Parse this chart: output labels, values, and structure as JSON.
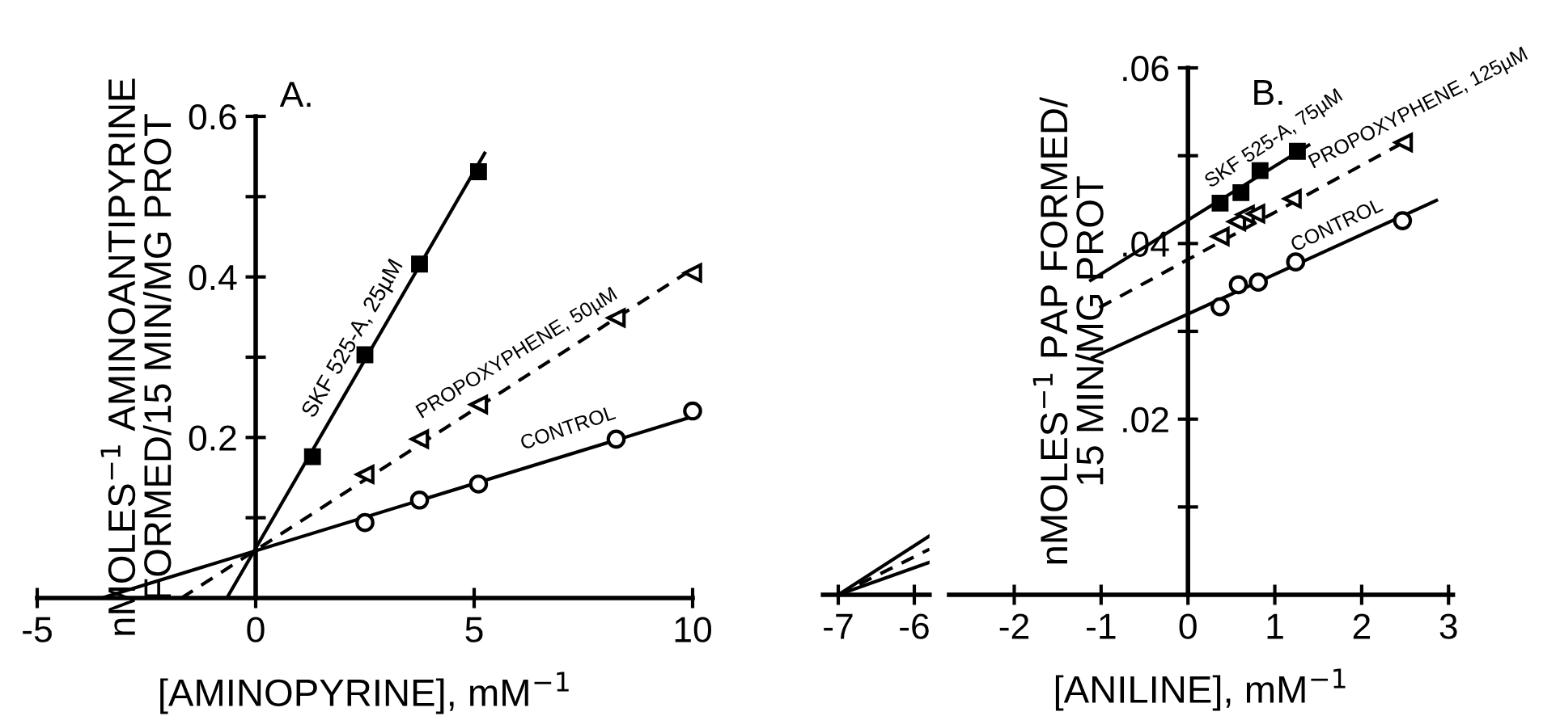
{
  "chart_data": [
    {
      "type": "scatter",
      "title": "A.",
      "xlabel": "[AMINOPYRINE], mM$^{−1}$",
      "ylabel": "nMOLES$^{−1}$ AMINOANTIPYRINE\nFORMED/15 MIN/MG PROT",
      "xlim": [
        -5,
        10
      ],
      "ylim": [
        0,
        0.6
      ],
      "xticks": [
        -5,
        0,
        5,
        10
      ],
      "yticks": [
        {
          "value": 0.1,
          "label": null
        },
        0.2,
        {
          "value": 0.3,
          "label": null
        },
        0.4,
        {
          "value": 0.5,
          "label": null
        },
        0.6
      ],
      "grid": false,
      "legend": false,
      "series": [
        {
          "name": "SKF 525-A, 25µM",
          "color": "#000000",
          "marker": "square",
          "x": [
            1.3,
            2.5,
            3.75,
            5.1
          ],
          "values": [
            0.176,
            0.303,
            0.416,
            0.531
          ]
        },
        {
          "name": "PROPOXYPHENE, 50µM",
          "color": "#000000",
          "marker": "triangle",
          "x": [
            2.5,
            3.75,
            5.1,
            8.25,
            10
          ],
          "values": [
            0.154,
            0.198,
            0.241,
            0.349,
            0.405
          ]
        },
        {
          "name": "CONTROL",
          "color": "#000000",
          "marker": "circle",
          "x": [
            2.5,
            3.75,
            5.1,
            8.25,
            10
          ],
          "values": [
            0.094,
            0.122,
            0.142,
            0.198,
            0.233
          ]
        },
        {
          "type": "line",
          "color": "#000000",
          "line_style": "solid",
          "x": [
            -0.66,
            5.24
          ],
          "values": [
            0,
            0.554
          ]
        },
        {
          "type": "line",
          "color": "#000000",
          "line_style": "dashed",
          "x": [
            -1.7,
            10
          ],
          "values": [
            0,
            0.41
          ]
        },
        {
          "type": "line",
          "color": "#000000",
          "line_style": "solid",
          "x": [
            -3.52,
            10
          ],
          "values": [
            0,
            0.226
          ]
        }
      ]
    },
    {
      "type": "scatter",
      "title": "B.",
      "xlabel": "[ANILINE], mM$^{−1}$",
      "ylabel": "nMOLES$^{−1}$ PAP FORMED/\n15 MIN/MG PROT",
      "xlim": [
        -2.75,
        3.05
      ],
      "ylim": [
        0,
        0.06
      ],
      "xticks": [
        -2,
        -1,
        0,
        1,
        2,
        3
      ],
      "yticks": [
        {
          "value": 0.01,
          "label": null
        },
        {
          "value": 0.02,
          "label": ".02"
        },
        {
          "value": 0.03,
          "label": null
        },
        {
          "value": 0.04,
          "label": ".04"
        },
        {
          "value": 0.05,
          "label": null
        },
        {
          "value": 0.06,
          "label": ".06"
        }
      ],
      "grid": false,
      "legend": false,
      "series": [
        {
          "name": "SKF 525-A, 75µM",
          "color": "#000000",
          "marker": "square",
          "x": [
            0.37,
            0.61,
            0.83,
            1.26
          ],
          "values": [
            0.0446,
            0.0458,
            0.0483,
            0.0505
          ]
        },
        {
          "name": "PROPOXYPHENE, 125µM",
          "color": "#000000",
          "marker": "triangle",
          "x": [
            0.37,
            0.56,
            0.66,
            0.78,
            1.2,
            2.48
          ],
          "values": [
            0.0408,
            0.0425,
            0.0433,
            0.0434,
            0.0451,
            0.0515
          ]
        },
        {
          "name": "CONTROL",
          "color": "#000000",
          "marker": "circle",
          "x": [
            0.37,
            0.58,
            0.81,
            1.24,
            2.47
          ],
          "values": [
            0.0328,
            0.0353,
            0.0356,
            0.0379,
            0.0426
          ]
        },
        {
          "type": "line",
          "color": "#000000",
          "line_style": "solid",
          "x": [
            -1.12,
            1.39
          ],
          "values": [
            0.0358,
            0.0512
          ]
        },
        {
          "type": "line",
          "color": "#000000",
          "line_style": "dashed",
          "x": [
            -1.02,
            2.48
          ],
          "values": [
            0.0327,
            0.0515
          ]
        },
        {
          "type": "line",
          "color": "#000000",
          "line_style": "solid",
          "x": [
            -1.1,
            2.86
          ],
          "values": [
            0.027,
            0.0449
          ]
        }
      ]
    },
    {
      "type": "line",
      "xlim": [
        -7.2,
        -5.8
      ],
      "ylim": [
        0,
        0.06
      ],
      "xticks": [
        -7,
        -6
      ],
      "tick_labels": "x",
      "grid": false,
      "legend": false,
      "series": [
        {
          "color": "#000000",
          "line_style": "solid",
          "x": [
            -7,
            -5.8
          ],
          "values": [
            0,
            0.0067
          ]
        },
        {
          "color": "#000000",
          "line_style": "dashed",
          "x": [
            -7,
            -5.8
          ],
          "values": [
            0,
            0.0052
          ]
        },
        {
          "color": "#000000",
          "line_style": "solid",
          "x": [
            -7,
            -5.8
          ],
          "values": [
            0,
            0.0037
          ]
        }
      ]
    }
  ]
}
